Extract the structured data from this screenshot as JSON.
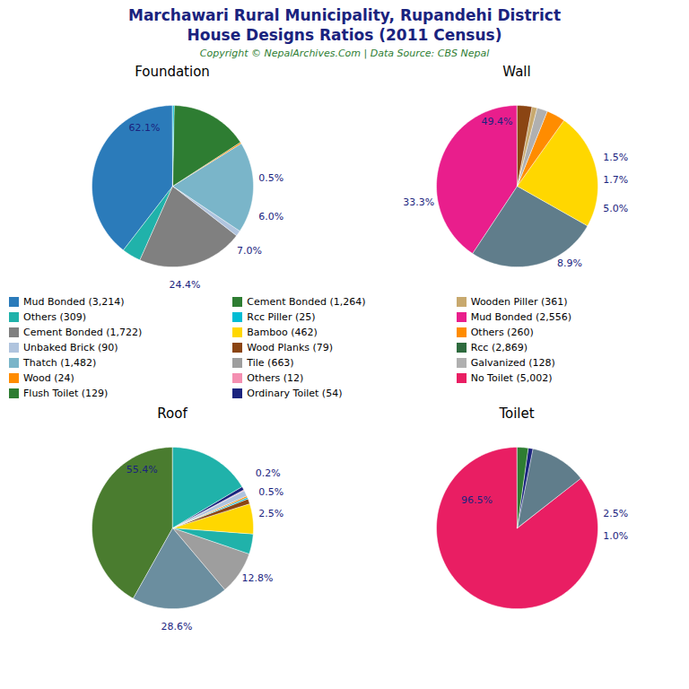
{
  "title": "Marchawari Rural Municipality, Rupandehi District",
  "subtitle": "House Designs Ratios (2011 Census)",
  "caption": "Copyright © NepalArchives.Com | Data Source: CBS Nepal",
  "legend_items": [
    {
      "name": "Mud Bonded (3,214)",
      "color": "#2b7bba"
    },
    {
      "name": "Others (309)",
      "color": "#20b2aa"
    },
    {
      "name": "Cement Bonded (1,722)",
      "color": "#808080"
    },
    {
      "name": "Unbaked Brick (90)",
      "color": "#b0c4de"
    },
    {
      "name": "Thatch (1,482)",
      "color": "#7ab5c9"
    },
    {
      "name": "Wood (24)",
      "color": "#ff8c00"
    },
    {
      "name": "Flush Toilet (129)",
      "color": "#2e7d32"
    },
    {
      "name": "Cement Bonded (1,264)",
      "color": "#2e7d32"
    },
    {
      "name": "Rcc Piller (25)",
      "color": "#00bcd4"
    },
    {
      "name": "Bamboo (462)",
      "color": "#ffd700"
    },
    {
      "name": "Wood Planks (79)",
      "color": "#8b4513"
    },
    {
      "name": "Tile (663)",
      "color": "#9e9e9e"
    },
    {
      "name": "Others (12)",
      "color": "#f48fb1"
    },
    {
      "name": "Ordinary Toilet (54)",
      "color": "#1a237e"
    },
    {
      "name": "Wooden Piller (361)",
      "color": "#c8a96e"
    },
    {
      "name": "Mud Bonded (2,556)",
      "color": "#e91e8c"
    },
    {
      "name": "Others (260)",
      "color": "#ff8c00"
    },
    {
      "name": "Rcc (2,869)",
      "color": "#2e6b3e"
    },
    {
      "name": "Galvanized (128)",
      "color": "#b0b0b0"
    },
    {
      "name": "No Toilet (5,002)",
      "color": "#e91e63"
    }
  ],
  "chart_data": [
    {
      "type": "pie",
      "title": "Foundation",
      "values": [
        3214,
        309,
        1722,
        90,
        1482,
        24,
        1264,
        25
      ],
      "colors": [
        "#2b7bba",
        "#20b2aa",
        "#808080",
        "#b0c4de",
        "#7ab5c9",
        "#ff8c00",
        "#2e7d32",
        "#00bcd4"
      ],
      "annotations": [
        "62.1%",
        "6.0%",
        "0.5%",
        "7.0%",
        "24.4%"
      ]
    },
    {
      "type": "pie",
      "title": "Wall",
      "values": [
        5002,
        3214,
        2869,
        462,
        260,
        128,
        361
      ],
      "colors": [
        "#e91e8c",
        "#607d8b",
        "#ffd700",
        "#ff8c00",
        "#b0b0b0",
        "#c8a96e",
        "#8b4513"
      ],
      "annotations": [
        "49.4%",
        "33.3%",
        "8.9%",
        "5.0%",
        "1.7%",
        "1.5%"
      ]
    },
    {
      "type": "pie",
      "title": "Roof",
      "values": [
        3214,
        1482,
        663,
        309,
        462,
        79,
        25,
        24,
        90,
        12,
        54,
        1264
      ],
      "colors": [
        "#4a7c2f",
        "#6b8e9f",
        "#9e9e9e",
        "#20b2aa",
        "#ffd700",
        "#8b4513",
        "#00bcd4",
        "#ff8c00",
        "#b0c4de",
        "#f48fb1",
        "#1a237e",
        "#20b2aa"
      ],
      "annotations": [
        "55.4%",
        "28.6%",
        "12.8%",
        "2.5%",
        "0.5%",
        "0.2%"
      ]
    },
    {
      "type": "pie",
      "title": "Toilet",
      "values": [
        5002,
        663,
        54,
        129
      ],
      "colors": [
        "#e91e63",
        "#607d8b",
        "#1a237e",
        "#2e7d32"
      ],
      "annotations": [
        "96.5%",
        "2.5%",
        "1.0%"
      ]
    }
  ]
}
